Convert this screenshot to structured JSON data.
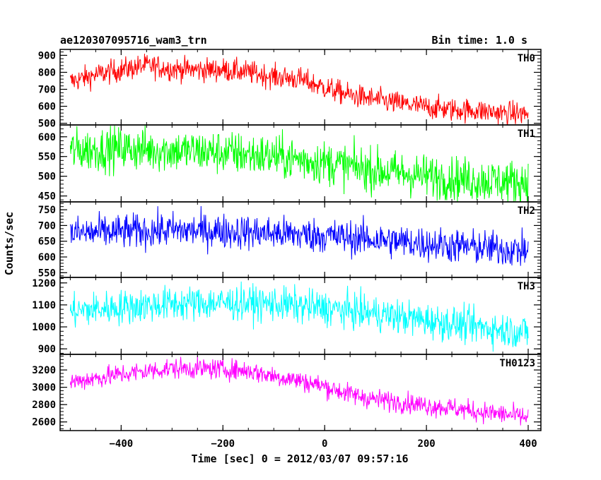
{
  "header": {
    "title": "ae120307095716_wam3_trn",
    "bin_time": "Bin time: 1.0 s"
  },
  "chart_data": {
    "type": "line",
    "title": "ae120307095716_wam3_trn",
    "xlabel": "Time [sec] 0 = 2012/03/07 09:57:16",
    "ylabel": "Counts/sec",
    "xlim": [
      -520,
      425
    ],
    "x_ticks": [
      -400,
      -200,
      0,
      200,
      400
    ],
    "x_tick_labels": [
      "−400",
      "−200",
      "0",
      "200",
      "400"
    ],
    "x_range": [
      -500,
      400
    ],
    "bin_time_s": 1.0,
    "grid": false,
    "legend": "panel labels at top-right of each panel",
    "panels": [
      {
        "name": "TH0",
        "color": "#ff0000",
        "ylim": [
          490,
          935
        ],
        "y_ticks": [
          500,
          600,
          700,
          800,
          900
        ],
        "y_tick_labels": [
          "500",
          "600",
          "700",
          "800",
          "900"
        ],
        "noise": 35,
        "trend": [
          [
            -500,
            745
          ],
          [
            -450,
            785
          ],
          [
            -400,
            815
          ],
          [
            -350,
            840
          ],
          [
            -300,
            820
          ],
          [
            -250,
            815
          ],
          [
            -200,
            815
          ],
          [
            -150,
            800
          ],
          [
            -100,
            775
          ],
          [
            -50,
            760
          ],
          [
            0,
            710
          ],
          [
            50,
            665
          ],
          [
            100,
            640
          ],
          [
            150,
            615
          ],
          [
            200,
            595
          ],
          [
            250,
            580
          ],
          [
            300,
            575
          ],
          [
            350,
            560
          ],
          [
            400,
            555
          ]
        ]
      },
      {
        "name": "TH1",
        "color": "#00ff00",
        "ylim": [
          435,
          630
        ],
        "y_ticks": [
          450,
          500,
          550,
          600
        ],
        "y_tick_labels": [
          "450",
          "500",
          "550",
          "600"
        ],
        "noise": 28,
        "trend": [
          [
            -500,
            565
          ],
          [
            -400,
            570
          ],
          [
            -300,
            565
          ],
          [
            -200,
            560
          ],
          [
            -100,
            550
          ],
          [
            0,
            535
          ],
          [
            100,
            515
          ],
          [
            200,
            500
          ],
          [
            300,
            490
          ],
          [
            400,
            485
          ]
        ]
      },
      {
        "name": "TH2",
        "color": "#0000ff",
        "ylim": [
          535,
          775
        ],
        "y_ticks": [
          550,
          600,
          650,
          700,
          750
        ],
        "y_tick_labels": [
          "550",
          "600",
          "650",
          "700",
          "750"
        ],
        "noise": 28,
        "trend": [
          [
            -500,
            675
          ],
          [
            -400,
            680
          ],
          [
            -300,
            685
          ],
          [
            -200,
            682
          ],
          [
            -100,
            675
          ],
          [
            0,
            668
          ],
          [
            100,
            655
          ],
          [
            200,
            642
          ],
          [
            300,
            630
          ],
          [
            400,
            620
          ]
        ]
      },
      {
        "name": "TH3",
        "color": "#00ffff",
        "ylim": [
          875,
          1225
        ],
        "y_ticks": [
          900,
          1000,
          1100,
          1200
        ],
        "y_tick_labels": [
          "900",
          "1000",
          "1100",
          "1200"
        ],
        "noise": 40,
        "trend": [
          [
            -500,
            1070
          ],
          [
            -400,
            1090
          ],
          [
            -300,
            1105
          ],
          [
            -200,
            1110
          ],
          [
            -100,
            1105
          ],
          [
            0,
            1085
          ],
          [
            100,
            1060
          ],
          [
            200,
            1030
          ],
          [
            300,
            1000
          ],
          [
            400,
            975
          ]
        ]
      },
      {
        "name": "TH0123",
        "color": "#ff00ff",
        "ylim": [
          2500,
          3380
        ],
        "y_ticks": [
          2600,
          2800,
          3000,
          3200
        ],
        "y_tick_labels": [
          "2600",
          "2800",
          "3000",
          "3200"
        ],
        "noise": 60,
        "trend": [
          [
            -500,
            3060
          ],
          [
            -400,
            3150
          ],
          [
            -300,
            3220
          ],
          [
            -200,
            3210
          ],
          [
            -150,
            3190
          ],
          [
            -100,
            3130
          ],
          [
            -50,
            3080
          ],
          [
            0,
            3010
          ],
          [
            50,
            2920
          ],
          [
            100,
            2860
          ],
          [
            150,
            2830
          ],
          [
            200,
            2790
          ],
          [
            250,
            2760
          ],
          [
            300,
            2720
          ],
          [
            350,
            2690
          ],
          [
            400,
            2650
          ]
        ]
      }
    ]
  }
}
